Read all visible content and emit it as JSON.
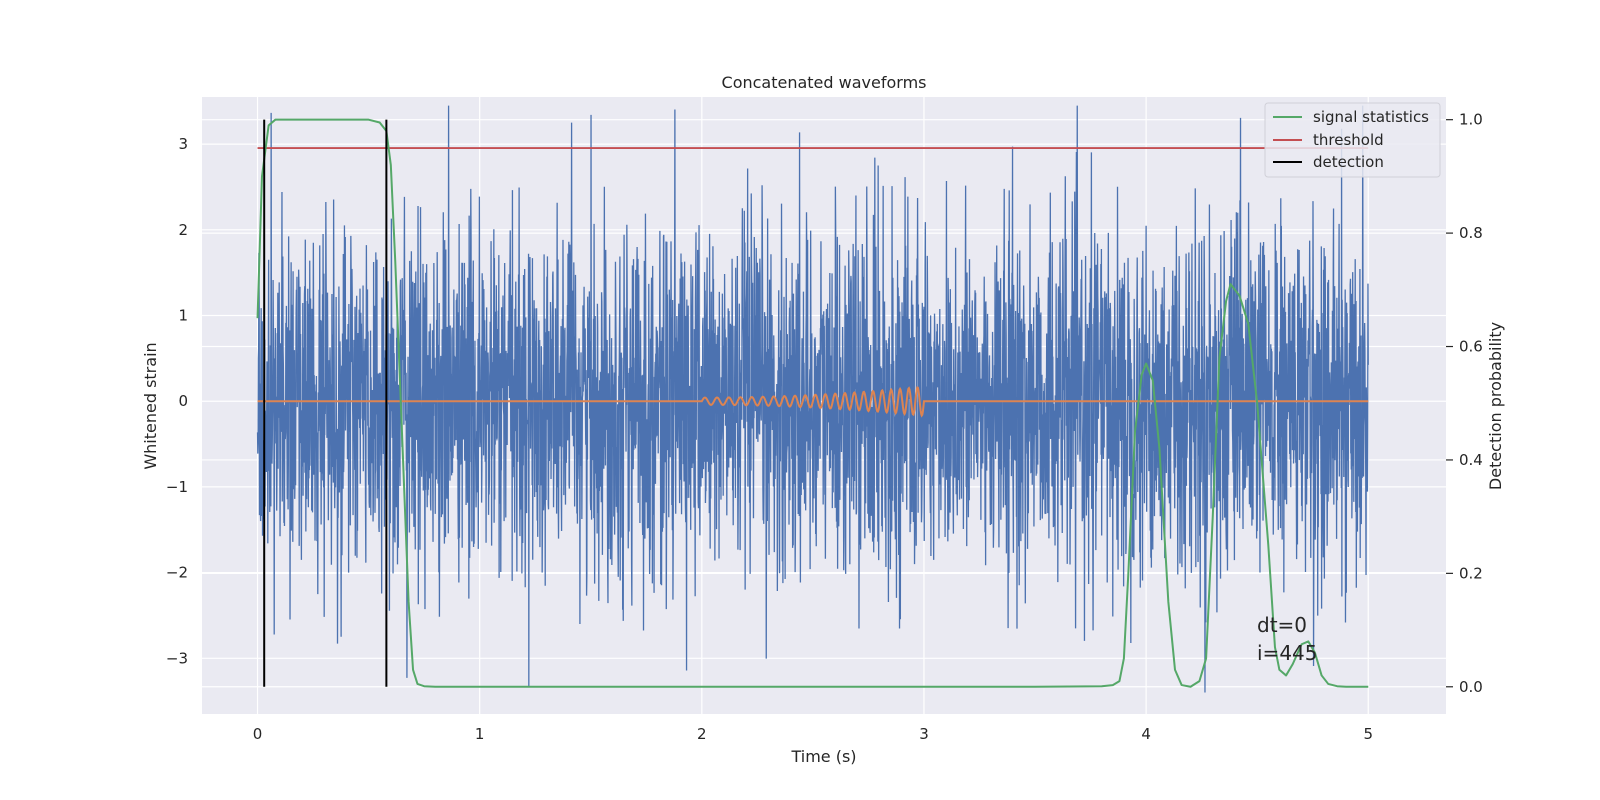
{
  "chart_data": {
    "type": "line",
    "title": "Concatenated waveforms",
    "xlabel": "Time (s)",
    "ylabel": "Whitened strain",
    "ylabel_right": "Detection probability",
    "xlim": [
      -0.25,
      5.35
    ],
    "ylim": [
      -3.65,
      3.55
    ],
    "ylim_right": [
      -0.048,
      1.04
    ],
    "xticks": [
      0,
      1,
      2,
      3,
      4,
      5
    ],
    "xtick_labels": [
      "0",
      "1",
      "2",
      "3",
      "4",
      "5"
    ],
    "yticks": [
      -3,
      -2,
      -1,
      0,
      1,
      2,
      3
    ],
    "ytick_labels": [
      "−3",
      "−2",
      "−1",
      "0",
      "1",
      "2",
      "3"
    ],
    "yticks_right": [
      0.0,
      0.2,
      0.4,
      0.6,
      0.8,
      1.0
    ],
    "ytick_labels_right": [
      "0.0",
      "0.2",
      "0.4",
      "0.6",
      "0.8",
      "1.0"
    ],
    "grid": true,
    "legend_position": "top-right",
    "legend": [
      "signal statistics",
      "threshold",
      "detection"
    ],
    "colors": {
      "strain": "#4c72b0",
      "injection": "#dd8452",
      "signal_statistics": "#55a868",
      "threshold": "#c44e52",
      "detection": "#000000",
      "background": "#eaeaf2",
      "grid": "#ffffff"
    },
    "series": [
      {
        "name": "signal statistics",
        "axis": "right",
        "x": [
          0.0,
          0.02,
          0.05,
          0.08,
          0.12,
          0.2,
          0.3,
          0.4,
          0.5,
          0.55,
          0.58,
          0.6,
          0.62,
          0.65,
          0.68,
          0.7,
          0.72,
          0.75,
          0.8,
          1.0,
          2.0,
          3.0,
          3.5,
          3.8,
          3.85,
          3.88,
          3.9,
          3.92,
          3.95,
          3.98,
          4.0,
          4.03,
          4.06,
          4.1,
          4.13,
          4.16,
          4.2,
          4.24,
          4.27,
          4.3,
          4.33,
          4.36,
          4.38,
          4.42,
          4.46,
          4.5,
          4.55,
          4.58,
          4.6,
          4.63,
          4.66,
          4.7,
          4.73,
          4.76,
          4.79,
          4.82,
          4.86,
          4.9,
          5.0
        ],
        "y": [
          0.65,
          0.9,
          0.99,
          1.0,
          1.0,
          1.0,
          1.0,
          1.0,
          1.0,
          0.995,
          0.98,
          0.92,
          0.75,
          0.45,
          0.15,
          0.03,
          0.005,
          0.001,
          0.0,
          0.0,
          0.0,
          0.0,
          0.0,
          0.001,
          0.003,
          0.01,
          0.05,
          0.2,
          0.45,
          0.55,
          0.57,
          0.54,
          0.42,
          0.15,
          0.03,
          0.003,
          0.0,
          0.01,
          0.05,
          0.3,
          0.58,
          0.68,
          0.71,
          0.69,
          0.64,
          0.5,
          0.25,
          0.07,
          0.03,
          0.02,
          0.04,
          0.075,
          0.08,
          0.06,
          0.02,
          0.005,
          0.001,
          0.0,
          0.0
        ]
      },
      {
        "name": "threshold",
        "axis": "right",
        "x": [
          0.0,
          5.0
        ],
        "y": [
          0.95,
          0.95
        ]
      },
      {
        "name": "detection",
        "axis": "right",
        "x": [
          0.03,
          0.58
        ],
        "y": [
          1.0,
          1.0
        ]
      },
      {
        "axis": "left",
        "x_range": [
          0.0,
          5.0
        ],
        "amplitude": 1.0
      },
      {
        "axis": "left",
        "x_range": [
          0.0,
          5.0
        ],
        "chirp_range": [
          2.0,
          3.0
        ],
        "peak_amplitude": 0.17
      }
    ],
    "annotations": [
      "dt=0",
      "i=445"
    ]
  }
}
